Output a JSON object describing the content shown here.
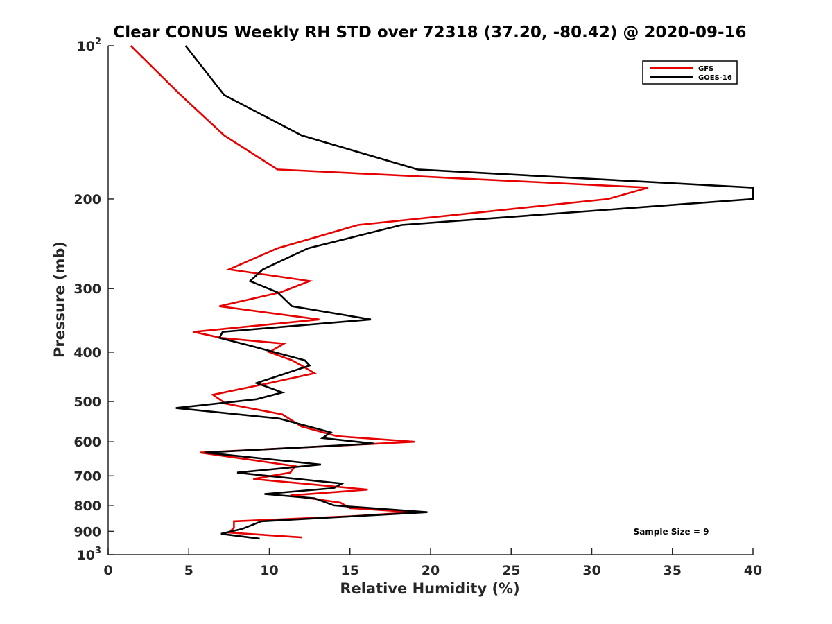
{
  "chart_data": {
    "type": "line",
    "title": "Clear CONUS Weekly RH STD over 72318 (37.20, -80.42) @ 2020-09-16",
    "xlabel": "Relative Humidity (%)",
    "ylabel": "Pressure (mb)",
    "xlim": [
      0,
      40
    ],
    "ylim": [
      100,
      1000
    ],
    "y_scale": "log",
    "y_reversed": true,
    "grid": false,
    "legend_position": "top-right",
    "x_ticks": [
      "0",
      "5",
      "10",
      "15",
      "20",
      "25",
      "30",
      "35",
      "40"
    ],
    "x_tick_values": [
      0,
      5,
      10,
      15,
      20,
      25,
      30,
      35,
      40
    ],
    "y_ticks": [
      {
        "value": 100,
        "base": "10",
        "exp": "2"
      },
      {
        "value": 200,
        "label": "200"
      },
      {
        "value": 300,
        "label": "300"
      },
      {
        "value": 400,
        "label": "400"
      },
      {
        "value": 500,
        "label": "500"
      },
      {
        "value": 600,
        "label": "600"
      },
      {
        "value": 700,
        "label": "700"
      },
      {
        "value": 800,
        "label": "800"
      },
      {
        "value": 900,
        "label": "900"
      },
      {
        "value": 1000,
        "base": "10",
        "exp": "3"
      }
    ],
    "series": [
      {
        "name": "GFS",
        "color": "#e60000",
        "points": [
          [
            1.4,
            100
          ],
          [
            4.5,
            125
          ],
          [
            7.2,
            150
          ],
          [
            10.5,
            175
          ],
          [
            33.5,
            190
          ],
          [
            31.0,
            200
          ],
          [
            15.5,
            225
          ],
          [
            10.5,
            250
          ],
          [
            7.5,
            275
          ],
          [
            12.5,
            290
          ],
          [
            10.7,
            305
          ],
          [
            6.9,
            325
          ],
          [
            13.1,
            345
          ],
          [
            5.3,
            365
          ],
          [
            7.0,
            375
          ],
          [
            10.9,
            385
          ],
          [
            10.0,
            400
          ],
          [
            11.4,
            415
          ],
          [
            12.0,
            425
          ],
          [
            12.8,
            440
          ],
          [
            10.0,
            460
          ],
          [
            6.5,
            485
          ],
          [
            7.3,
            505
          ],
          [
            10.8,
            530
          ],
          [
            12.0,
            560
          ],
          [
            14.2,
            585
          ],
          [
            19.0,
            600
          ],
          [
            5.7,
            630
          ],
          [
            11.6,
            670
          ],
          [
            11.3,
            690
          ],
          [
            9.0,
            710
          ],
          [
            16.1,
            745
          ],
          [
            11.3,
            765
          ],
          [
            14.4,
            790
          ],
          [
            15.0,
            810
          ],
          [
            19.0,
            825
          ],
          [
            15.2,
            840
          ],
          [
            7.8,
            860
          ],
          [
            7.8,
            885
          ],
          [
            7.5,
            905
          ],
          [
            12.0,
            925
          ]
        ]
      },
      {
        "name": "GOES-16",
        "color": "#000000",
        "points": [
          [
            4.8,
            100
          ],
          [
            7.2,
            125
          ],
          [
            12.0,
            150
          ],
          [
            19.2,
            175
          ],
          [
            40.0,
            190
          ],
          [
            40.0,
            200
          ],
          [
            18.2,
            225
          ],
          [
            12.4,
            250
          ],
          [
            9.6,
            275
          ],
          [
            8.8,
            290
          ],
          [
            10.5,
            305
          ],
          [
            11.4,
            325
          ],
          [
            16.3,
            345
          ],
          [
            7.1,
            365
          ],
          [
            6.9,
            375
          ],
          [
            9.0,
            390
          ],
          [
            12.2,
            415
          ],
          [
            12.5,
            425
          ],
          [
            9.2,
            460
          ],
          [
            10.8,
            480
          ],
          [
            9.2,
            495
          ],
          [
            4.2,
            515
          ],
          [
            10.6,
            540
          ],
          [
            13.8,
            575
          ],
          [
            13.3,
            590
          ],
          [
            16.5,
            605
          ],
          [
            6.0,
            630
          ],
          [
            13.2,
            665
          ],
          [
            8.0,
            690
          ],
          [
            14.5,
            725
          ],
          [
            14.0,
            740
          ],
          [
            9.7,
            760
          ],
          [
            12.8,
            775
          ],
          [
            14.0,
            800
          ],
          [
            19.8,
            825
          ],
          [
            9.5,
            860
          ],
          [
            8.3,
            890
          ],
          [
            7.0,
            910
          ],
          [
            9.4,
            930
          ]
        ]
      }
    ],
    "legend": [
      {
        "label": "GFS",
        "color": "#e60000"
      },
      {
        "label": "GOES-16",
        "color": "#000000"
      }
    ],
    "annotation": "Sample Size = 9"
  }
}
